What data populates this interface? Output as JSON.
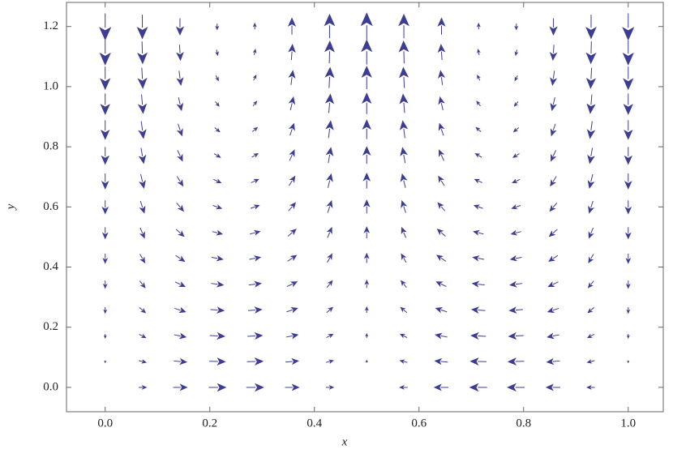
{
  "chart_data": {
    "type": "quiver",
    "xlabel": "x",
    "ylabel": "y",
    "color": "#3d3d93",
    "xlim": [
      -0.074,
      1.067
    ],
    "ylim": [
      -0.081,
      1.28
    ],
    "xticks": [
      {
        "value": 0,
        "label": "0.0"
      },
      {
        "value": 0.2,
        "label": "0.2"
      },
      {
        "value": 0.4,
        "label": "0.4"
      },
      {
        "value": 0.6,
        "label": "0.6"
      },
      {
        "value": 0.8,
        "label": "0.8"
      },
      {
        "value": 1,
        "label": "1.0"
      }
    ],
    "yticks": [
      {
        "value": 0,
        "label": "0.0"
      },
      {
        "value": 0.2,
        "label": "0.2"
      },
      {
        "value": 0.4,
        "label": "0.4"
      },
      {
        "value": 0.6,
        "label": "0.6"
      },
      {
        "value": 0.8,
        "label": "0.8"
      },
      {
        "value": 1,
        "label": "1.0"
      },
      {
        "value": 1.2,
        "label": "1.2"
      }
    ],
    "x": [
      0,
      0.071,
      0.143,
      0.214,
      0.286,
      0.357,
      0.429,
      0.5,
      0.571,
      0.643,
      0.714,
      0.786,
      0.857,
      0.929,
      1
    ],
    "y": [
      0,
      0.086,
      0.171,
      0.257,
      0.343,
      0.429,
      0.514,
      0.6,
      0.686,
      0.771,
      0.857,
      0.943,
      1.029,
      1.114,
      1.2
    ],
    "u": [
      [
        0,
        0.52,
        0.94,
        1.16,
        1.16,
        0.94,
        0.52,
        0,
        -0.52,
        -0.94,
        -1.16,
        -1.16,
        -0.94,
        -0.52,
        0
      ],
      [
        0,
        0.48,
        0.87,
        1.08,
        1.08,
        0.87,
        0.48,
        0,
        -0.48,
        -0.87,
        -1.08,
        -1.08,
        -0.87,
        -0.48,
        0
      ],
      [
        0,
        0.44,
        0.8,
        1,
        1,
        0.8,
        0.44,
        0,
        -0.44,
        -0.8,
        -1,
        -1,
        -0.8,
        -0.44,
        0
      ],
      [
        0,
        0.41,
        0.74,
        0.91,
        0.91,
        0.74,
        0.41,
        0,
        -0.41,
        -0.74,
        -0.91,
        -0.91,
        -0.74,
        -0.41,
        0
      ],
      [
        0,
        0.37,
        0.67,
        0.83,
        0.83,
        0.67,
        0.37,
        0,
        -0.37,
        -0.67,
        -0.83,
        -0.83,
        -0.67,
        -0.37,
        0
      ],
      [
        0,
        0.33,
        0.6,
        0.75,
        0.75,
        0.6,
        0.33,
        0,
        -0.33,
        -0.6,
        -0.75,
        -0.75,
        -0.6,
        -0.33,
        0
      ],
      [
        0,
        0.29,
        0.54,
        0.67,
        0.67,
        0.54,
        0.29,
        0,
        -0.29,
        -0.54,
        -0.67,
        -0.67,
        -0.54,
        -0.29,
        0
      ],
      [
        0,
        0.26,
        0.47,
        0.58,
        0.58,
        0.47,
        0.26,
        0,
        -0.26,
        -0.47,
        -0.58,
        -0.58,
        -0.47,
        -0.26,
        0
      ],
      [
        0,
        0.22,
        0.4,
        0.5,
        0.5,
        0.4,
        0.22,
        0,
        -0.22,
        -0.4,
        -0.5,
        -0.5,
        -0.4,
        -0.22,
        0
      ],
      [
        0,
        0.18,
        0.33,
        0.42,
        0.42,
        0.33,
        0.18,
        0,
        -0.18,
        -0.33,
        -0.42,
        -0.42,
        -0.33,
        -0.18,
        0
      ],
      [
        0,
        0.15,
        0.27,
        0.33,
        0.33,
        0.27,
        0.15,
        0,
        -0.15,
        -0.27,
        -0.33,
        -0.33,
        -0.27,
        -0.15,
        0
      ],
      [
        0,
        0.11,
        0.2,
        0.25,
        0.25,
        0.2,
        0.11,
        0,
        -0.11,
        -0.2,
        -0.25,
        -0.25,
        -0.2,
        -0.11,
        0
      ],
      [
        0,
        0.07,
        0.13,
        0.17,
        0.17,
        0.13,
        0.07,
        0,
        -0.07,
        -0.13,
        -0.17,
        -0.17,
        -0.13,
        -0.07,
        0
      ],
      [
        0,
        0.04,
        0.07,
        0.08,
        0.08,
        0.07,
        0.04,
        0,
        -0.04,
        -0.07,
        -0.08,
        -0.08,
        -0.07,
        -0.04,
        0
      ],
      [
        0,
        0,
        0,
        0,
        0,
        0,
        0,
        0,
        0,
        0,
        0,
        0,
        0,
        0,
        0
      ]
    ],
    "v": [
      [
        0,
        0,
        0,
        0,
        0,
        0,
        0,
        0,
        0,
        0,
        0,
        0,
        0,
        0,
        0
      ],
      [
        -0.13,
        -0.12,
        -0.08,
        -0.03,
        0.03,
        0.08,
        0.12,
        0.13,
        0.12,
        0.08,
        0.03,
        -0.03,
        -0.08,
        -0.12,
        -0.13
      ],
      [
        -0.26,
        -0.23,
        -0.16,
        -0.06,
        0.06,
        0.16,
        0.23,
        0.26,
        0.23,
        0.16,
        0.06,
        -0.06,
        -0.16,
        -0.23,
        -0.26
      ],
      [
        -0.39,
        -0.35,
        -0.24,
        -0.08,
        0.08,
        0.24,
        0.35,
        0.39,
        0.35,
        0.24,
        0.08,
        -0.08,
        -0.24,
        -0.35,
        -0.39
      ],
      [
        -0.51,
        -0.46,
        -0.32,
        -0.11,
        0.11,
        0.32,
        0.46,
        0.51,
        0.46,
        0.32,
        0.11,
        -0.11,
        -0.32,
        -0.46,
        -0.51
      ],
      [
        -0.64,
        -0.58,
        -0.4,
        -0.14,
        0.14,
        0.4,
        0.58,
        0.64,
        0.58,
        0.4,
        0.14,
        -0.14,
        -0.4,
        -0.58,
        -0.64
      ],
      [
        -0.77,
        -0.69,
        -0.48,
        -0.17,
        0.17,
        0.48,
        0.69,
        0.77,
        0.69,
        0.48,
        0.17,
        -0.17,
        -0.48,
        -0.69,
        -0.77
      ],
      [
        -0.9,
        -0.81,
        -0.56,
        -0.2,
        0.2,
        0.56,
        0.81,
        0.9,
        0.81,
        0.56,
        0.2,
        -0.2,
        -0.56,
        -0.81,
        -0.9
      ],
      [
        -1.03,
        -0.93,
        -0.64,
        -0.23,
        0.23,
        0.64,
        0.93,
        1.03,
        0.93,
        0.64,
        0.23,
        -0.23,
        -0.64,
        -0.93,
        -1.03
      ],
      [
        -1.16,
        -1.04,
        -0.72,
        -0.25,
        0.25,
        0.72,
        1.04,
        1.16,
        1.04,
        0.72,
        0.25,
        -0.25,
        -0.72,
        -1.04,
        -1.16
      ],
      [
        -1.29,
        -1.16,
        -0.8,
        -0.28,
        0.28,
        0.8,
        1.16,
        1.29,
        1.16,
        0.8,
        0.28,
        -0.28,
        -0.8,
        -1.16,
        -1.29
      ],
      [
        -1.41,
        -1.27,
        -0.88,
        -0.31,
        0.31,
        0.88,
        1.27,
        1.41,
        1.27,
        0.88,
        0.31,
        -0.31,
        -0.88,
        -1.27,
        -1.41
      ],
      [
        -1.54,
        -1.39,
        -0.96,
        -0.34,
        0.34,
        0.96,
        1.39,
        1.54,
        1.39,
        0.96,
        0.34,
        -0.34,
        -0.96,
        -1.39,
        -1.54
      ],
      [
        -1.67,
        -1.5,
        -1.04,
        -0.37,
        0.37,
        1.04,
        1.5,
        1.67,
        1.5,
        1.04,
        0.37,
        -0.37,
        -1.04,
        -1.5,
        -1.67
      ],
      [
        -1.8,
        -1.62,
        -1.12,
        -0.4,
        0.4,
        1.12,
        1.62,
        1.8,
        1.62,
        1.12,
        0.4,
        -0.4,
        -1.12,
        -1.62,
        -1.8
      ]
    ]
  }
}
